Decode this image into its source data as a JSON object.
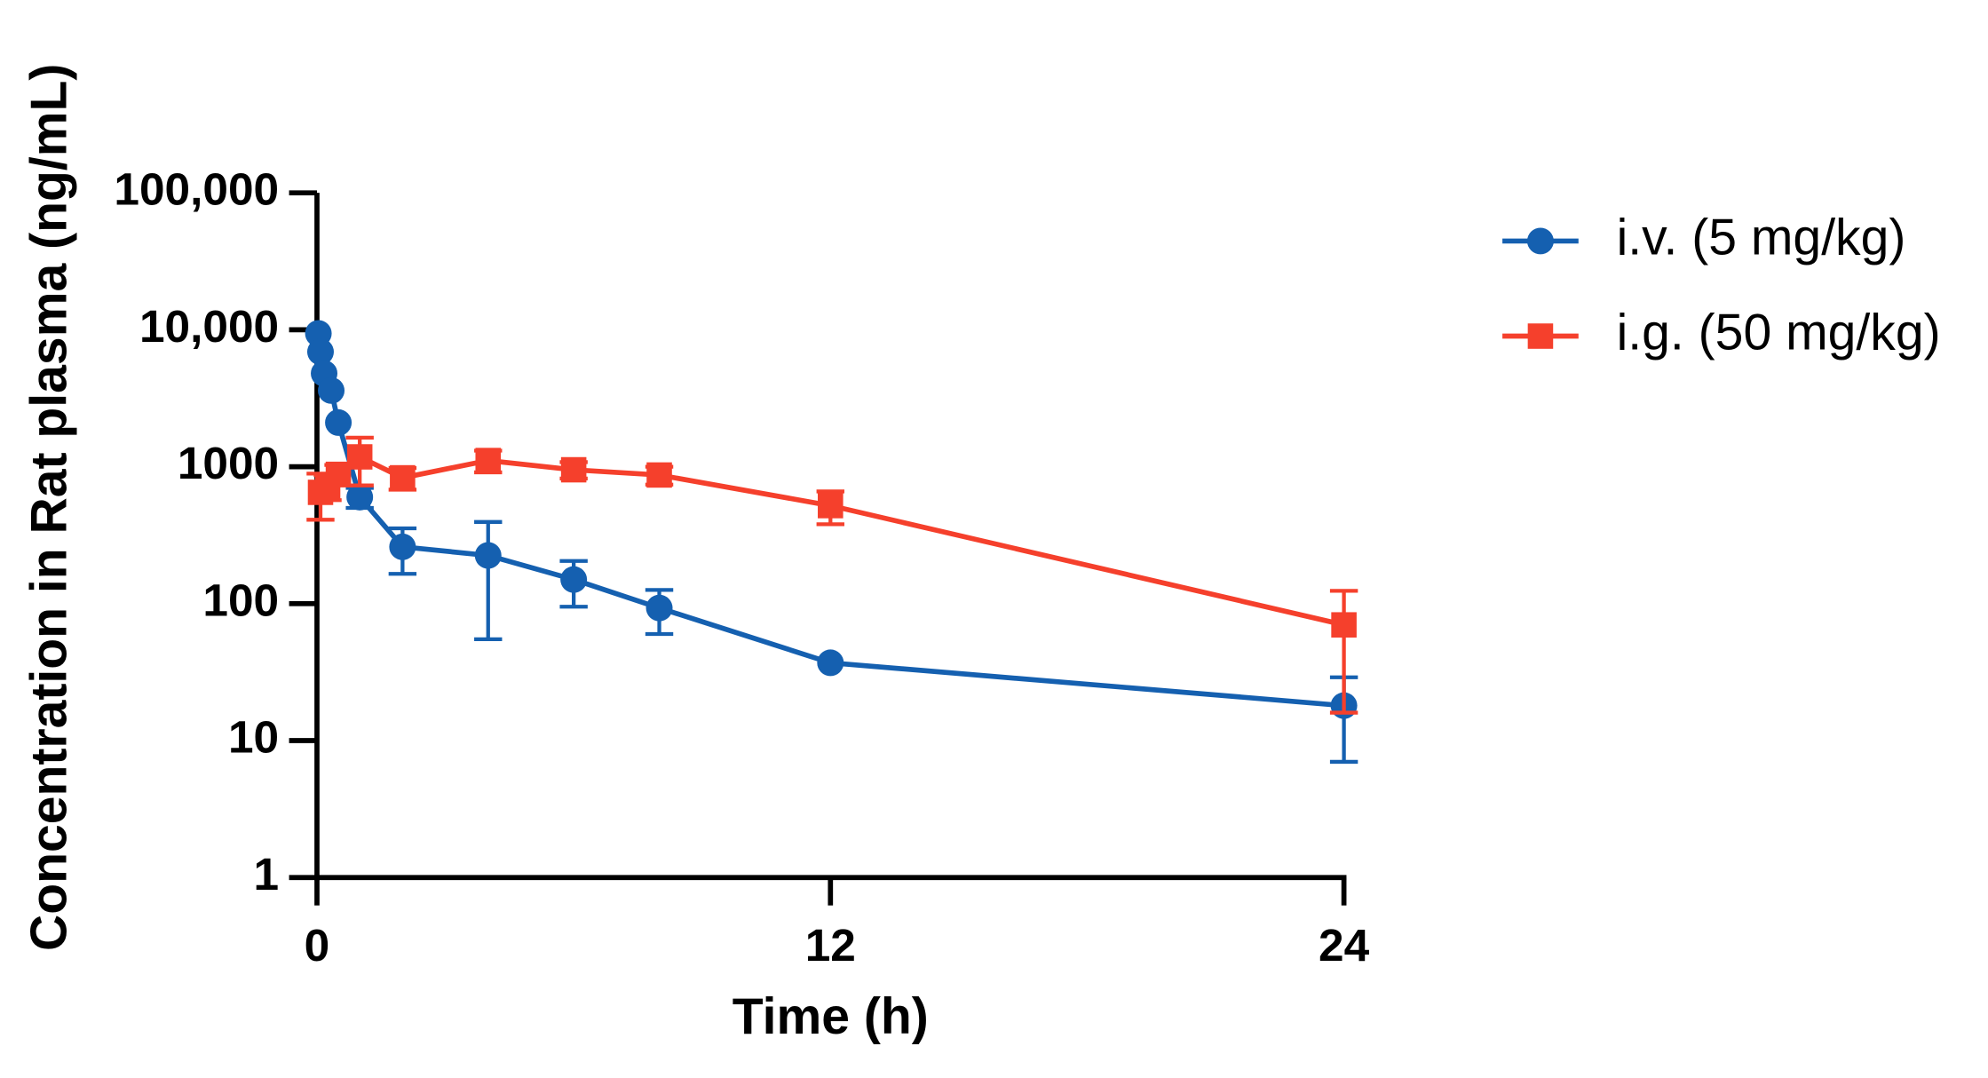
{
  "chart_data": {
    "type": "line",
    "x_label": "Time (h)",
    "y_label": "Concentration in Rat plasma (ng/mL)",
    "y_scale": "log",
    "grid": false,
    "legend_position": "right",
    "xlim": [
      0,
      24
    ],
    "xticks": [
      0,
      12,
      24
    ],
    "ylim": [
      1,
      100000
    ],
    "yticks": [
      1,
      10,
      100,
      1000,
      {
        "value": 10000,
        "label": "10,000"
      },
      {
        "value": 100000,
        "label": "100,000"
      }
    ],
    "series": [
      {
        "name": "i.v. (5 mg/kg)",
        "color": "#1560b0",
        "marker": "circle",
        "x": [
          0.033,
          0.083,
          0.167,
          0.333,
          0.5,
          1,
          2,
          4,
          6,
          8,
          12,
          24
        ],
        "values": [
          9400,
          6900,
          4800,
          3600,
          2100,
          600,
          260,
          225,
          150,
          93,
          37,
          18
        ],
        "errors": [
          null,
          null,
          null,
          null,
          null,
          100,
          95,
          170,
          55,
          33,
          null,
          11
        ]
      },
      {
        "name": "i.g. (50 mg/kg)",
        "color": "#f5402c",
        "marker": "square",
        "x": [
          0.083,
          0.25,
          0.5,
          1,
          2,
          4,
          6,
          8,
          12,
          24
        ],
        "values": [
          650,
          720,
          880,
          1180,
          830,
          1110,
          950,
          870,
          520,
          70
        ],
        "errors": [
          240,
          150,
          150,
          450,
          150,
          200,
          130,
          130,
          140,
          54
        ]
      }
    ]
  }
}
